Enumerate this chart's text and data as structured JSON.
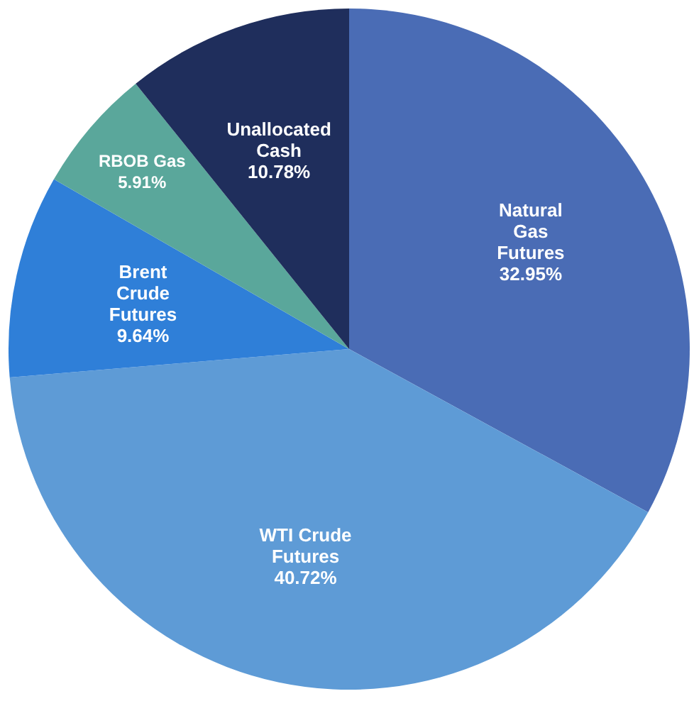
{
  "chart_data": {
    "type": "pie",
    "categories": [
      "Natural Gas Futures",
      "WTI Crude Futures",
      "Brent Crude Futures",
      "RBOB Gas",
      "Unallocated Cash"
    ],
    "values": [
      32.95,
      40.72,
      9.64,
      5.91,
      10.78
    ],
    "colors": [
      "#4a6cb5",
      "#5e9bd6",
      "#2f7fd8",
      "#5aa79b",
      "#1f2e5c"
    ],
    "value_labels": [
      "32.95%",
      "40.72%",
      "9.64%",
      "5.91%",
      "10.78%"
    ],
    "legend": false
  }
}
